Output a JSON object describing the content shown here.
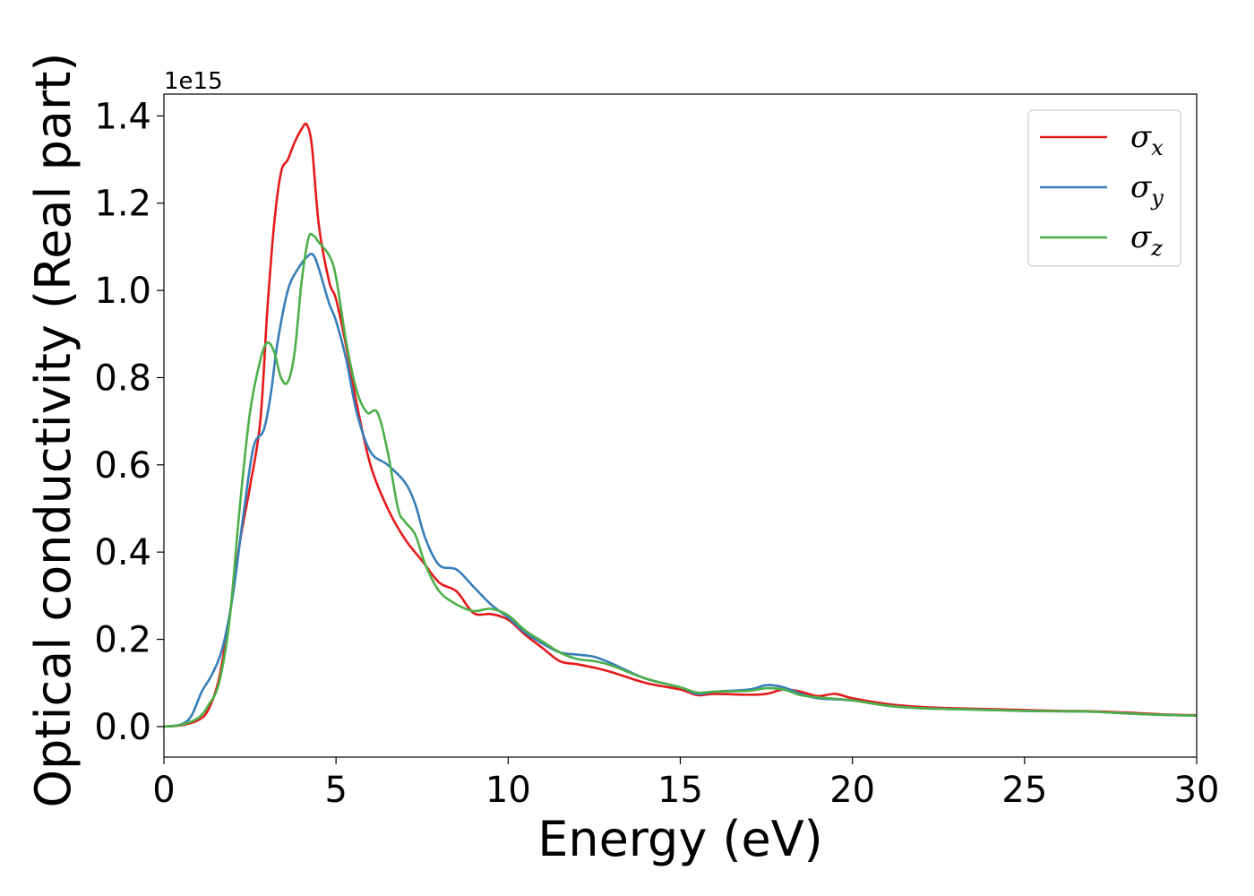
{
  "chart_data": {
    "type": "line",
    "xlabel": "Energy (eV)",
    "ylabel": "Optical conductivity (Real part)",
    "y_offset_label": "1e15",
    "xlim": [
      0,
      30
    ],
    "ylim": [
      -0.07,
      1.45
    ],
    "xticks": [
      0,
      5,
      10,
      15,
      20,
      25,
      30
    ],
    "xtick_labels": [
      "0",
      "5",
      "10",
      "15",
      "20",
      "25",
      "30"
    ],
    "yticks": [
      0.0,
      0.2,
      0.4,
      0.6,
      0.8,
      1.0,
      1.2,
      1.4
    ],
    "ytick_labels": [
      "0.0",
      "0.2",
      "0.4",
      "0.6",
      "0.8",
      "1.0",
      "1.2",
      "1.4"
    ],
    "grid": false,
    "legend_position": "top-right",
    "series": [
      {
        "name": "σx",
        "symbol": "σ",
        "subscript": "x",
        "color": "#e41a1c",
        "x": [
          0,
          0.5,
          1.0,
          1.3,
          1.6,
          1.9,
          2.2,
          2.5,
          2.8,
          3.0,
          3.2,
          3.4,
          3.6,
          3.8,
          4.0,
          4.15,
          4.3,
          4.5,
          4.8,
          5.0,
          5.3,
          5.6,
          6.0,
          6.5,
          7.0,
          7.5,
          8.0,
          8.5,
          9.0,
          9.5,
          10.0,
          10.5,
          11.0,
          11.5,
          12.0,
          12.5,
          13.0,
          14.0,
          15.0,
          15.5,
          16.0,
          17.0,
          17.5,
          18.0,
          18.5,
          19.0,
          19.5,
          20.0,
          21.0,
          22.0,
          23.0,
          24.0,
          25.0,
          26.0,
          27.0,
          28.0,
          29.0,
          30.0
        ],
        "y": [
          0.0,
          0.003,
          0.015,
          0.04,
          0.11,
          0.25,
          0.42,
          0.55,
          0.7,
          0.95,
          1.15,
          1.27,
          1.3,
          1.34,
          1.37,
          1.38,
          1.33,
          1.15,
          1.02,
          0.98,
          0.87,
          0.74,
          0.6,
          0.5,
          0.43,
          0.38,
          0.33,
          0.31,
          0.26,
          0.258,
          0.245,
          0.21,
          0.18,
          0.15,
          0.143,
          0.135,
          0.125,
          0.1,
          0.085,
          0.072,
          0.075,
          0.073,
          0.075,
          0.085,
          0.08,
          0.07,
          0.075,
          0.065,
          0.052,
          0.045,
          0.042,
          0.04,
          0.038,
          0.036,
          0.035,
          0.032,
          0.028,
          0.026
        ]
      },
      {
        "name": "σy",
        "symbol": "σ",
        "subscript": "y",
        "color": "#377eb8",
        "x": [
          0,
          0.5,
          0.8,
          1.1,
          1.4,
          1.7,
          2.0,
          2.3,
          2.6,
          2.9,
          3.1,
          3.3,
          3.6,
          3.9,
          4.2,
          4.35,
          4.5,
          4.8,
          5.0,
          5.3,
          5.6,
          6.0,
          6.5,
          7.0,
          7.3,
          7.6,
          8.0,
          8.5,
          9.0,
          9.5,
          10.0,
          10.5,
          11.0,
          11.5,
          12.0,
          12.5,
          13.0,
          14.0,
          15.0,
          15.5,
          16.0,
          17.0,
          17.5,
          18.0,
          18.5,
          19.0,
          20.0,
          21.0,
          22.0,
          23.0,
          24.0,
          25.0,
          26.0,
          27.0,
          28.0,
          29.0,
          30.0
        ],
        "y": [
          0.0,
          0.005,
          0.025,
          0.08,
          0.12,
          0.18,
          0.3,
          0.48,
          0.64,
          0.68,
          0.76,
          0.88,
          1.0,
          1.05,
          1.08,
          1.08,
          1.05,
          0.97,
          0.93,
          0.84,
          0.72,
          0.63,
          0.6,
          0.56,
          0.51,
          0.43,
          0.37,
          0.36,
          0.32,
          0.28,
          0.25,
          0.215,
          0.19,
          0.17,
          0.165,
          0.16,
          0.145,
          0.11,
          0.09,
          0.075,
          0.08,
          0.085,
          0.095,
          0.09,
          0.075,
          0.065,
          0.06,
          0.048,
          0.042,
          0.04,
          0.038,
          0.036,
          0.035,
          0.034,
          0.03,
          0.027,
          0.025
        ]
      },
      {
        "name": "σz",
        "symbol": "σ",
        "subscript": "z",
        "color": "#4daf4a",
        "x": [
          0,
          0.5,
          1.0,
          1.3,
          1.6,
          1.9,
          2.2,
          2.5,
          2.8,
          3.0,
          3.2,
          3.4,
          3.6,
          3.8,
          4.0,
          4.2,
          4.35,
          4.5,
          4.8,
          5.0,
          5.3,
          5.6,
          5.9,
          6.2,
          6.5,
          6.8,
          7.0,
          7.3,
          7.6,
          8.0,
          8.5,
          9.0,
          9.5,
          10.0,
          10.5,
          11.0,
          11.5,
          12.0,
          12.5,
          13.0,
          14.0,
          15.0,
          15.5,
          16.0,
          17.0,
          17.5,
          18.0,
          18.5,
          19.0,
          20.0,
          21.0,
          22.0,
          23.0,
          24.0,
          25.0,
          26.0,
          27.0,
          28.0,
          29.0,
          30.0
        ],
        "y": [
          0.0,
          0.004,
          0.02,
          0.05,
          0.1,
          0.24,
          0.5,
          0.72,
          0.84,
          0.88,
          0.86,
          0.8,
          0.79,
          0.86,
          1.02,
          1.12,
          1.125,
          1.11,
          1.08,
          1.03,
          0.88,
          0.77,
          0.72,
          0.72,
          0.63,
          0.5,
          0.47,
          0.44,
          0.37,
          0.31,
          0.28,
          0.265,
          0.27,
          0.255,
          0.22,
          0.195,
          0.17,
          0.155,
          0.15,
          0.14,
          0.11,
          0.09,
          0.078,
          0.08,
          0.082,
          0.088,
          0.085,
          0.072,
          0.067,
          0.06,
          0.048,
          0.042,
          0.04,
          0.038,
          0.036,
          0.035,
          0.034,
          0.03,
          0.027,
          0.025
        ]
      }
    ]
  }
}
